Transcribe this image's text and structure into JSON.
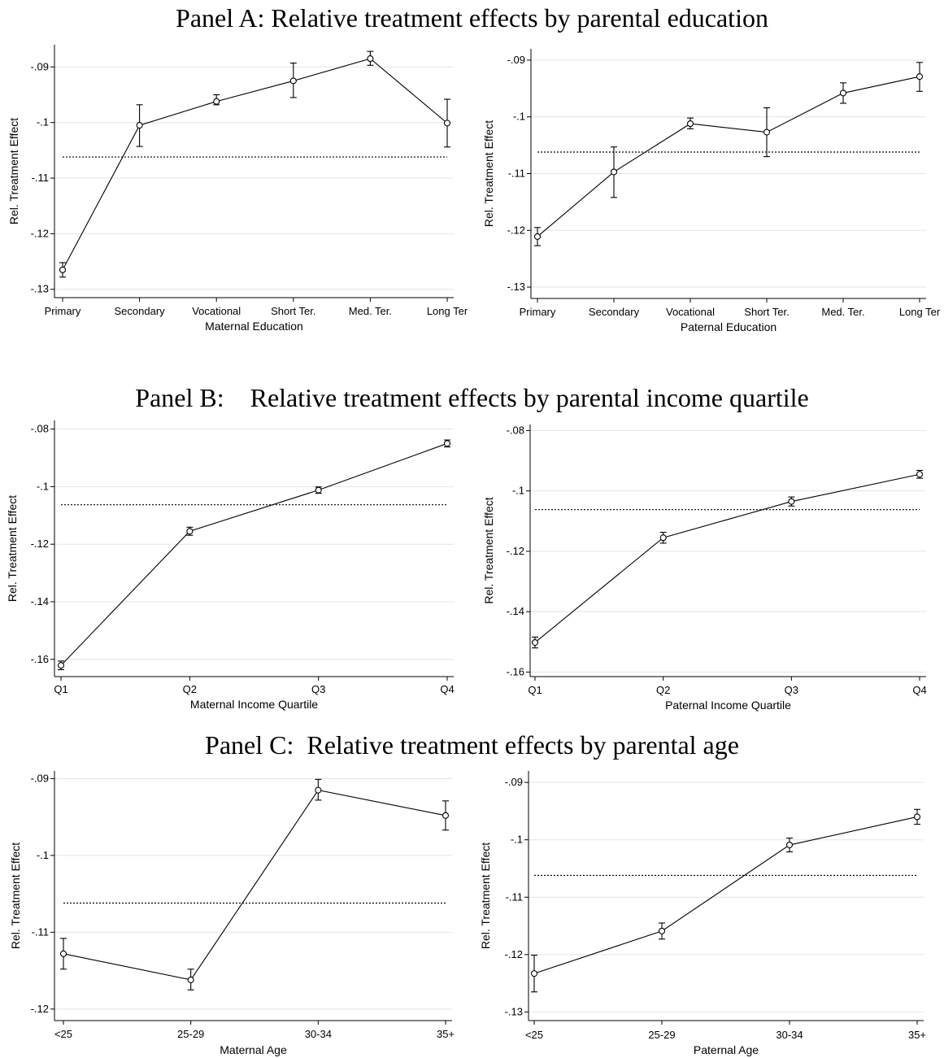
{
  "panels": [
    {
      "title": "Panel A: Relative treatment effects by parental education"
    },
    {
      "title": "Panel B:    Relative treatment effects by parental income quartile"
    },
    {
      "title": "Panel C:  Relative treatment effects by parental age"
    }
  ],
  "chart_data": [
    {
      "type": "line",
      "xlabel": "Maternal Education",
      "ylabel": "Rel. Treatment Effect",
      "categories": [
        "Primary",
        "Secondary",
        "Vocational",
        "Short Ter.",
        "Med. Ter.",
        "Long Ter"
      ],
      "values": [
        -0.1265,
        -0.1005,
        -0.0962,
        -0.0925,
        -0.0885,
        -0.1001
      ],
      "ci_low": [
        -0.1278,
        -0.1043,
        -0.0968,
        -0.0955,
        -0.0897,
        -0.1044
      ],
      "ci_high": [
        -0.1252,
        -0.0968,
        -0.095,
        -0.0893,
        -0.0872,
        -0.0958
      ],
      "reference_line": -0.1062,
      "yticks": [
        -0.09,
        -0.1,
        -0.11,
        -0.12,
        -0.13
      ],
      "ytick_labels": [
        "-.09",
        "-.1",
        "-.11",
        "-.12",
        "-.13"
      ],
      "ylim": [
        -0.1315,
        -0.086
      ],
      "grid": true
    },
    {
      "type": "line",
      "xlabel": "Paternal Education",
      "ylabel": "Rel. Treatment Effect",
      "categories": [
        "Primary",
        "Secondary",
        "Vocational",
        "Short Ter.",
        "Med. Ter.",
        "Long Ter"
      ],
      "values": [
        -0.1211,
        -0.1097,
        -0.1012,
        -0.1027,
        -0.0958,
        -0.0929
      ],
      "ci_low": [
        -0.1227,
        -0.1142,
        -0.1021,
        -0.107,
        -0.0976,
        -0.0955
      ],
      "ci_high": [
        -0.1195,
        -0.1053,
        -0.1002,
        -0.0984,
        -0.094,
        -0.0904
      ],
      "reference_line": -0.1062,
      "yticks": [
        -0.09,
        -0.1,
        -0.11,
        -0.12,
        -0.13
      ],
      "ytick_labels": [
        "-.09",
        "-.1",
        "-.11",
        "-.12",
        "-.13"
      ],
      "ylim": [
        -0.132,
        -0.088
      ],
      "grid": true
    },
    {
      "type": "line",
      "xlabel": "Maternal Income Quartile",
      "ylabel": "Rel. Treatment Effect",
      "categories": [
        "Q1",
        "Q2",
        "Q3",
        "Q4"
      ],
      "values": [
        -0.1621,
        -0.1155,
        -0.1012,
        -0.085
      ],
      "ci_low": [
        -0.1636,
        -0.1169,
        -0.1023,
        -0.0862
      ],
      "ci_high": [
        -0.1606,
        -0.1141,
        -0.1001,
        -0.0838
      ],
      "reference_line": -0.1063,
      "yticks": [
        -0.08,
        -0.1,
        -0.12,
        -0.14,
        -0.16
      ],
      "ytick_labels": [
        "-.08",
        "-.1",
        "-.12",
        "-.14",
        "-.16"
      ],
      "ylim": [
        -0.166,
        -0.077
      ],
      "grid": true
    },
    {
      "type": "line",
      "xlabel": "Paternal Income Quartile",
      "ylabel": "Rel. Treatment Effect",
      "categories": [
        "Q1",
        "Q2",
        "Q3",
        "Q4"
      ],
      "values": [
        -0.1502,
        -0.1155,
        -0.1035,
        -0.0945
      ],
      "ci_low": [
        -0.152,
        -0.1173,
        -0.105,
        -0.0958
      ],
      "ci_high": [
        -0.1484,
        -0.1137,
        -0.102,
        -0.0932
      ],
      "reference_line": -0.1062,
      "yticks": [
        -0.08,
        -0.1,
        -0.12,
        -0.14,
        -0.16
      ],
      "ytick_labels": [
        "-.08",
        "-.1",
        "-.12",
        "-.14",
        "-.16"
      ],
      "ylim": [
        -0.1615,
        -0.078
      ],
      "grid": true
    },
    {
      "type": "line",
      "xlabel": "Maternal Age",
      "ylabel": "Rel. Treatment Effect",
      "categories": [
        "<25",
        "25-29",
        "30-34",
        "35+"
      ],
      "values": [
        -0.1128,
        -0.1162,
        -0.0915,
        -0.0948
      ],
      "ci_low": [
        -0.1148,
        -0.1175,
        -0.0928,
        -0.0967
      ],
      "ci_high": [
        -0.1108,
        -0.1148,
        -0.0901,
        -0.0929
      ],
      "reference_line": -0.1062,
      "yticks": [
        -0.09,
        -0.1,
        -0.11,
        -0.12
      ],
      "ytick_labels": [
        "-.09",
        "-.1",
        "-.11",
        "-.12"
      ],
      "ylim": [
        -0.1215,
        -0.089
      ],
      "grid": true
    },
    {
      "type": "line",
      "xlabel": "Paternal Age",
      "ylabel": "Rel. Treatment Effect",
      "categories": [
        "<25",
        "25-29",
        "30-34",
        "35+"
      ],
      "values": [
        -0.1233,
        -0.1159,
        -0.1009,
        -0.096
      ],
      "ci_low": [
        -0.1265,
        -0.1173,
        -0.1021,
        -0.0973
      ],
      "ci_high": [
        -0.1201,
        -0.1145,
        -0.0997,
        -0.0947
      ],
      "reference_line": -0.1062,
      "yticks": [
        -0.09,
        -0.1,
        -0.11,
        -0.12,
        -0.13
      ],
      "ytick_labels": [
        "-.09",
        "-.1",
        "-.11",
        "-.12",
        "-.13"
      ],
      "ylim": [
        -0.1315,
        -0.088
      ],
      "grid": true
    }
  ]
}
